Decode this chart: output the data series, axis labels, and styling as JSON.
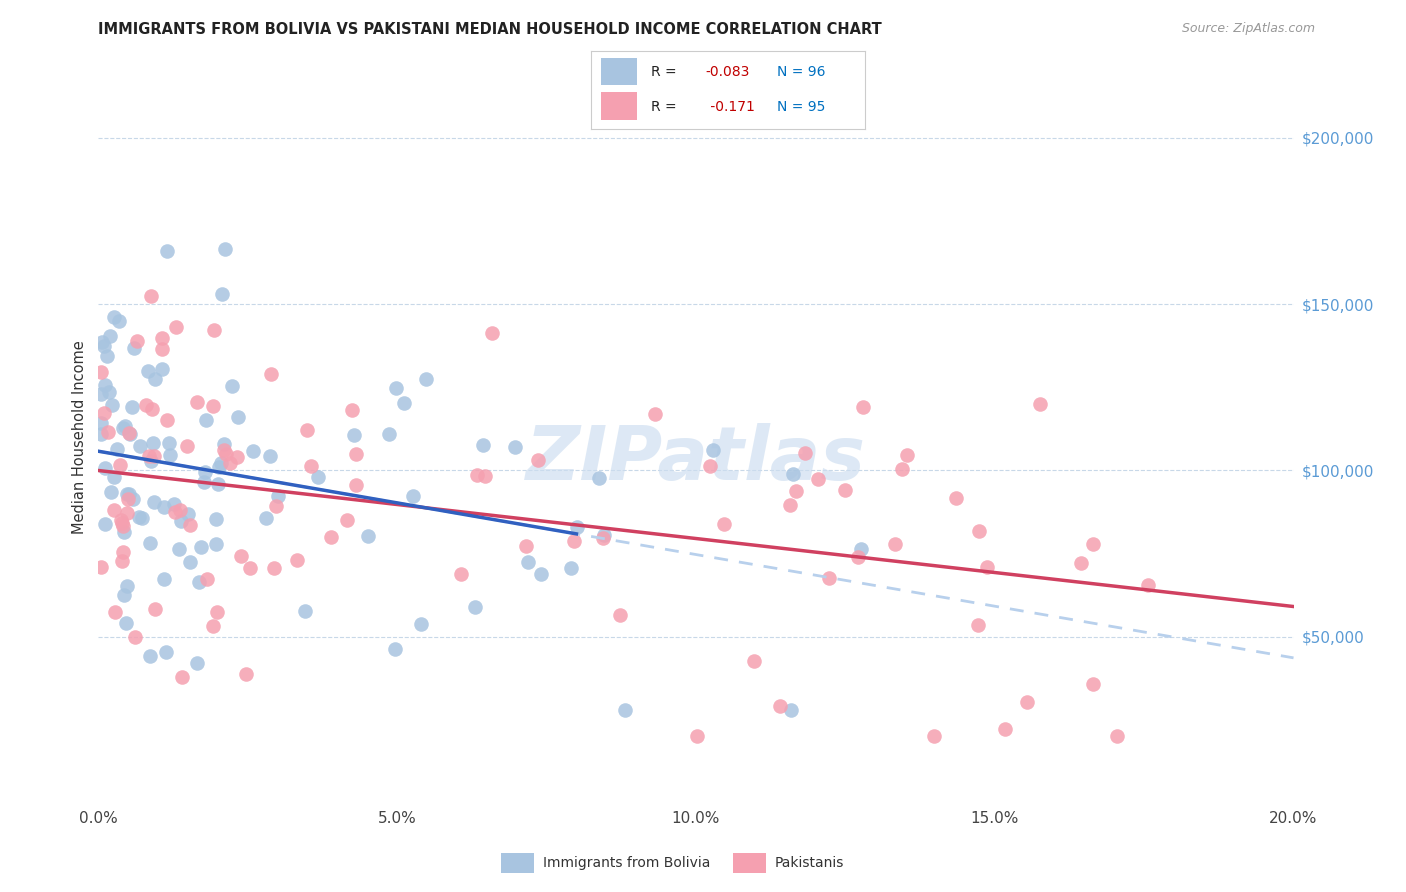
{
  "title": "IMMIGRANTS FROM BOLIVIA VS PAKISTANI MEDIAN HOUSEHOLD INCOME CORRELATION CHART",
  "source": "Source: ZipAtlas.com",
  "ylabel": "Median Household Income",
  "xlim": [
    0.0,
    0.2
  ],
  "ylim": [
    0,
    220000
  ],
  "xtick_labels": [
    "0.0%",
    "5.0%",
    "10.0%",
    "15.0%",
    "20.0%"
  ],
  "xtick_vals": [
    0.0,
    0.05,
    0.1,
    0.15,
    0.2
  ],
  "ytick_vals": [
    50000,
    100000,
    150000,
    200000
  ],
  "ytick_labels": [
    "$50,000",
    "$100,000",
    "$150,000",
    "$200,000"
  ],
  "color_bolivia": "#a8c4e0",
  "color_pakistan": "#f5a0b0",
  "trendline_bolivia_color": "#3060c0",
  "trendline_pakistan_color": "#d04060",
  "trendline_dash_color": "#b8d0ec",
  "watermark": "ZIPatlas",
  "r_bolivia": -0.083,
  "n_bolivia": 96,
  "r_pakistan": -0.171,
  "n_pakistan": 95
}
